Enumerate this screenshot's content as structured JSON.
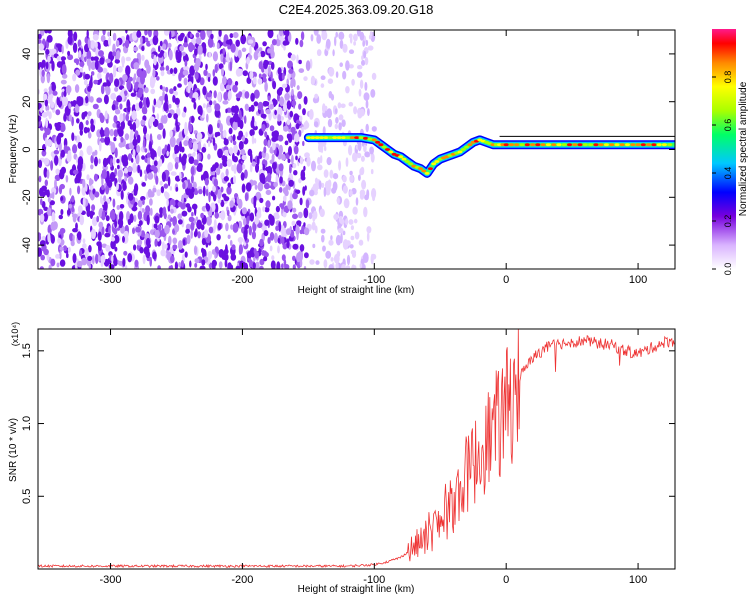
{
  "title": "C2E4.2025.363.09.20.G18",
  "chart_data": [
    {
      "type": "heatmap",
      "xlabel": "Height of straight line (km)",
      "ylabel": "Frequency (Hz)",
      "xlim": [
        -355,
        128
      ],
      "ylim": [
        -50,
        50
      ],
      "x_ticks": [
        -300,
        -200,
        -100,
        0,
        100
      ],
      "y_ticks": [
        -40,
        -20,
        0,
        20,
        40
      ],
      "x_tick_labels": [
        "-300",
        "-200",
        "-100",
        "0",
        "100"
      ],
      "y_tick_labels": [
        "-40",
        "-20",
        "0",
        "20",
        "40"
      ],
      "noise_region_x": [
        -355,
        -100
      ],
      "signal_track": {
        "x": [
          -150,
          -140,
          -130,
          -120,
          -110,
          -100,
          -95,
          -90,
          -85,
          -80,
          -75,
          -70,
          -65,
          -60,
          -55,
          -50,
          -45,
          -40,
          -35,
          -30,
          -25,
          -20,
          -15,
          -10,
          -5,
          0,
          20,
          40,
          60,
          80,
          100,
          128
        ],
        "freq": [
          5,
          5,
          5,
          5,
          5,
          4,
          2,
          0,
          -2,
          -3,
          -5,
          -7,
          -8,
          -10,
          -6,
          -4,
          -3,
          -2,
          -1,
          1,
          3,
          4,
          3,
          2,
          2,
          2,
          2,
          2,
          2,
          2,
          2,
          2
        ]
      },
      "colorbar": {
        "label": "Normalized spectral amplitude",
        "range": [
          0,
          1
        ],
        "ticks": [
          0,
          0.2,
          0.4,
          0.6,
          0.8
        ],
        "tick_labels": [
          "0.0",
          "0.2",
          "0.4",
          "0.6",
          "0.8"
        ]
      }
    },
    {
      "type": "line",
      "xlabel": "Height of straight line (km)",
      "ylabel": "SNR (10 * v/v)",
      "scale_label": "(x10⁴)",
      "xlim": [
        -355,
        128
      ],
      "ylim": [
        0,
        1.65
      ],
      "x_ticks": [
        -300,
        -200,
        -100,
        0,
        100
      ],
      "y_ticks": [
        0.5,
        1.0,
        1.5
      ],
      "x_tick_labels": [
        "-300",
        "-200",
        "-100",
        "0",
        "100"
      ],
      "y_tick_labels": [
        "0.5",
        "1.0",
        "1.5"
      ],
      "color": "#ee3333",
      "series": [
        {
          "x": [
            -355,
            -300,
            -250,
            -200,
            -150,
            -120,
            -100,
            -90,
            -80,
            -70,
            -60,
            -55,
            -50,
            -45,
            -40,
            -35,
            -30,
            -25,
            -20,
            -15,
            -10,
            -5,
            0,
            5,
            10,
            15,
            20,
            30,
            40,
            50,
            60,
            70,
            80,
            90,
            100,
            110,
            120,
            128
          ],
          "y": [
            0.02,
            0.02,
            0.02,
            0.02,
            0.02,
            0.02,
            0.03,
            0.05,
            0.08,
            0.15,
            0.22,
            0.28,
            0.3,
            0.38,
            0.45,
            0.55,
            0.65,
            0.72,
            0.8,
            0.88,
            0.95,
            1.0,
            1.08,
            1.2,
            1.32,
            1.38,
            1.45,
            1.52,
            1.55,
            1.56,
            1.57,
            1.55,
            1.54,
            1.5,
            1.48,
            1.52,
            1.56,
            1.57
          ]
        }
      ]
    }
  ]
}
